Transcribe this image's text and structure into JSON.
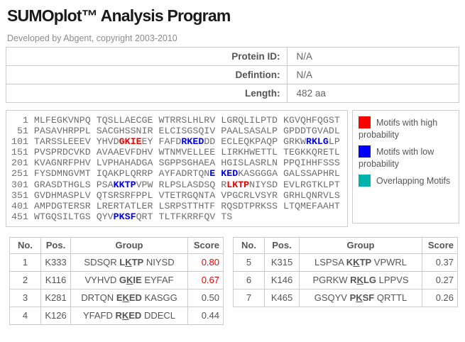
{
  "title": "SUMOplot™ Analysis Program",
  "subtitle": "Developed by Abgent, copyright 2003-2010",
  "info": {
    "rows": [
      {
        "label": "Protein ID:",
        "value": "N/A"
      },
      {
        "label": "Defintion:",
        "value": "N/A"
      },
      {
        "label": "Length:",
        "value": "482 aa"
      }
    ]
  },
  "sequence": {
    "rows": [
      {
        "pos": "1",
        "segments": [
          {
            "text": "MLFEGKVNPQ TQSLLAECGE WTRRSLHLRV LGRQLILPTD KGVQHFQGST",
            "style": "normal"
          }
        ]
      },
      {
        "pos": "51",
        "segments": [
          {
            "text": "PASAVHRPPL SACGHSSNIR ELCISGSQIV PAALSASALP GPDDTGVADL",
            "style": "normal"
          }
        ]
      },
      {
        "pos": "101",
        "segments": [
          {
            "text": "TARSSLEEEV YHVD",
            "style": "normal"
          },
          {
            "text": "GKIE",
            "style": "high"
          },
          {
            "text": "EY FAFD",
            "style": "normal"
          },
          {
            "text": "RKED",
            "style": "low"
          },
          {
            "text": "DD ECLEQKPAQP GRKW",
            "style": "normal"
          },
          {
            "text": "RKLG",
            "style": "low"
          },
          {
            "text": "LP",
            "style": "normal"
          }
        ]
      },
      {
        "pos": "151",
        "segments": [
          {
            "text": "PVSPRDCVKD AVAAEVFDHV WTNMVELLEE LIRKHWETTL TEGKKQRETL",
            "style": "normal"
          }
        ]
      },
      {
        "pos": "201",
        "segments": [
          {
            "text": "KVAGNRFPHV LVPHAHADGA SGPPSGHAEA HGISLASRLN PPQIHHFSSS",
            "style": "normal"
          }
        ]
      },
      {
        "pos": "251",
        "segments": [
          {
            "text": "FYSDMNGVMT IQAKPLQRRP AYFADRTQN",
            "style": "normal"
          },
          {
            "text": "E KED",
            "style": "low"
          },
          {
            "text": "KASGGGA GALSSAPHRL",
            "style": "normal"
          }
        ]
      },
      {
        "pos": "301",
        "segments": [
          {
            "text": "GRASDTHGLS PSA",
            "style": "normal"
          },
          {
            "text": "KKTP",
            "style": "low"
          },
          {
            "text": "VPW RLPSLASDSQ R",
            "style": "normal"
          },
          {
            "text": "LKTP",
            "style": "high"
          },
          {
            "text": "NIYSD EVLRGTKLPT",
            "style": "normal"
          }
        ]
      },
      {
        "pos": "351",
        "segments": [
          {
            "text": "GVDHMASPLV QTSRSRFPPL VTETRGQNTA VPGCRLVSYR GRHLQNRVLS",
            "style": "normal"
          }
        ]
      },
      {
        "pos": "401",
        "segments": [
          {
            "text": "AMPDGTERSR LRERTATLER LSRPSTTHTF RQSDTPRKSS LTQMEFAAHT",
            "style": "normal"
          }
        ]
      },
      {
        "pos": "451",
        "segments": [
          {
            "text": "WTGQSILTGS QYV",
            "style": "normal"
          },
          {
            "text": "PKSF",
            "style": "low"
          },
          {
            "text": "QRT TLTFKRRFQV TS",
            "style": "normal"
          }
        ]
      }
    ]
  },
  "legend": {
    "items": [
      {
        "name": "high-probability-motif",
        "label": "Motifs with high probability",
        "color": "#ff0000"
      },
      {
        "name": "low-probability-motif",
        "label": "Motifs with low probability",
        "color": "#0000ff"
      },
      {
        "name": "overlapping-motif",
        "label": "Overlapping Motifs",
        "color": "#00b3ab"
      }
    ]
  },
  "results": {
    "headers": {
      "no": "No.",
      "pos": "Pos.",
      "group": "Group",
      "score": "Score"
    },
    "tables": [
      {
        "rows": [
          {
            "no": "1",
            "pos": "K333",
            "pre": "SDSQR",
            "motif_b": "L",
            "motif_k": "K",
            "motif_a": "TP",
            "post": "NIYSD",
            "score": "0.80",
            "high": true
          },
          {
            "no": "2",
            "pos": "K116",
            "pre": "VYHVD",
            "motif_b": "G",
            "motif_k": "K",
            "motif_a": "IE",
            "post": "EYFAF",
            "score": "0.67",
            "high": true
          },
          {
            "no": "3",
            "pos": "K281",
            "pre": "DRTQN",
            "motif_b": "E",
            "motif_k": "K",
            "motif_a": "ED",
            "post": "KASGG",
            "score": "0.50",
            "high": false
          },
          {
            "no": "4",
            "pos": "K126",
            "pre": "YFAFD",
            "motif_b": "R",
            "motif_k": "K",
            "motif_a": "ED",
            "post": "DDECL",
            "score": "0.44",
            "high": false
          }
        ]
      },
      {
        "rows": [
          {
            "no": "5",
            "pos": "K315",
            "pre": "LSPSA",
            "motif_b": "K",
            "motif_k": "K",
            "motif_a": "TP",
            "post": "VPWRL",
            "score": "0.37",
            "high": false
          },
          {
            "no": "6",
            "pos": "K146",
            "pre": "PGRKW",
            "motif_b": "R",
            "motif_k": "K",
            "motif_a": "LG",
            "post": "LPPVS",
            "score": "0.27",
            "high": false
          },
          {
            "no": "7",
            "pos": "K465",
            "pre": "GSQYV",
            "motif_b": "P",
            "motif_k": "K",
            "motif_a": "SF",
            "post": "QRTTL",
            "score": "0.26",
            "high": false
          }
        ]
      }
    ]
  }
}
